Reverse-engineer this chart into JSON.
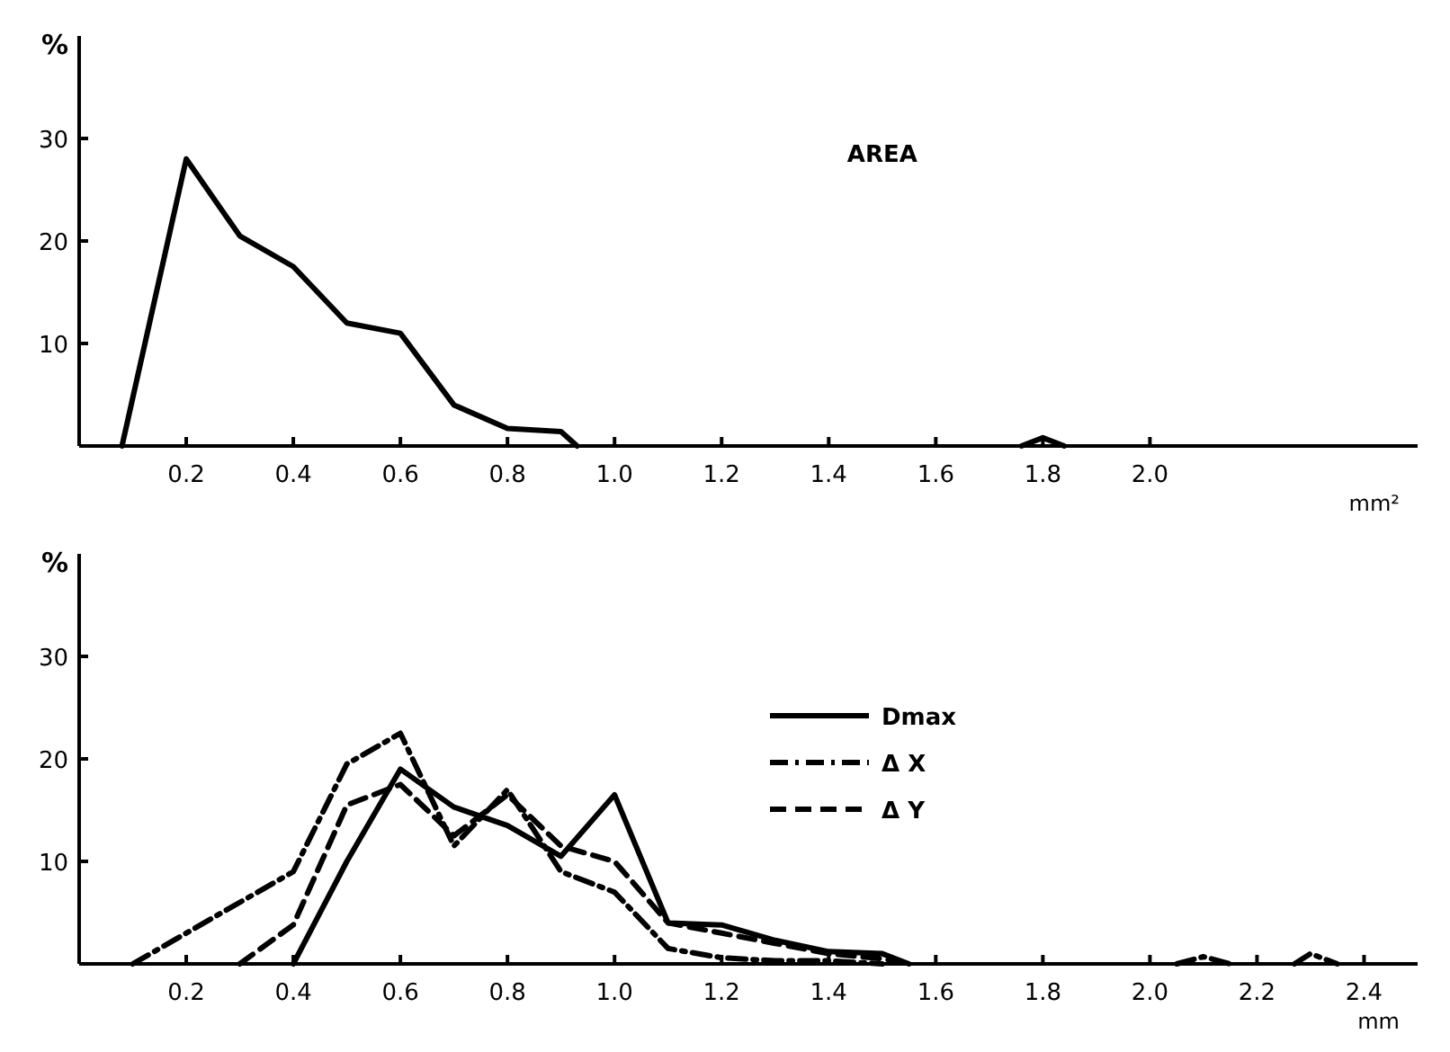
{
  "chart_data": [
    {
      "type": "line",
      "xlabel": "mm²",
      "ylabel": "%",
      "xlim": [
        0,
        2.5
      ],
      "ylim": [
        0,
        40
      ],
      "xticks": [
        0.2,
        0.4,
        {
          "value": 0.6,
          "label": "0.6"
        },
        0.8,
        {
          "value": 1.0,
          "label": "1.0"
        },
        1.2,
        1.4,
        1.6,
        1.8,
        {
          "value": 2.0,
          "label": "2.0"
        }
      ],
      "yticks": [
        10,
        20,
        30
      ],
      "grid": false,
      "legend": false,
      "annotations": [
        "AREA"
      ],
      "series": [
        {
          "color": "#000000",
          "line_style": "solid",
          "x": [
            0.08,
            0.2,
            0.3,
            0.4,
            0.5,
            0.6,
            0.7,
            0.8,
            0.9,
            0.93,
            null,
            1.76,
            1.8,
            1.84
          ],
          "values": [
            0,
            28,
            20.5,
            17.5,
            12,
            11,
            4,
            1.7,
            1.4,
            0,
            null,
            0,
            0.8,
            0
          ]
        }
      ]
    },
    {
      "type": "line",
      "xlabel": "mm",
      "ylabel": "%",
      "xlim": [
        0,
        2.5
      ],
      "ylim": [
        0,
        40
      ],
      "xticks": [
        0.2,
        0.4,
        0.6,
        0.8,
        {
          "value": 1.0,
          "label": "1.0"
        },
        1.2,
        1.4,
        1.6,
        1.8,
        {
          "value": 2.0,
          "label": "2.0"
        },
        2.2,
        2.4
      ],
      "yticks": [
        10,
        20,
        30
      ],
      "grid": false,
      "legend": "center",
      "series": [
        {
          "name": "Dmax",
          "color": "#000000",
          "line_style": "solid",
          "x": [
            0.4,
            0.5,
            0.6,
            0.7,
            0.8,
            0.9,
            1.0,
            1.1,
            1.2,
            1.3,
            1.4,
            1.5,
            1.55
          ],
          "values": [
            0,
            10,
            19,
            15.3,
            13.5,
            10.5,
            16.5,
            4,
            3.8,
            2.3,
            1.2,
            1,
            0
          ]
        },
        {
          "name": "Δ X",
          "color": "#000000",
          "line_style": "dashdot",
          "x": [
            0.1,
            0.4,
            0.5,
            0.6,
            0.7,
            0.8,
            0.9,
            1.0,
            1.1,
            1.2,
            1.3,
            1.4,
            1.5,
            null,
            2.05,
            2.1,
            2.15,
            null,
            2.27,
            2.3,
            2.35
          ],
          "values": [
            0,
            9,
            19.5,
            22.5,
            11.5,
            17,
            9,
            7,
            1.5,
            0.6,
            0.3,
            0.3,
            0,
            null,
            0,
            0.7,
            0,
            null,
            0,
            1,
            0
          ]
        },
        {
          "name": "Δ Y",
          "color": "#000000",
          "line_style": "dashed",
          "x": [
            0.3,
            0.4,
            0.5,
            0.6,
            0.7,
            0.8,
            0.9,
            1.0,
            1.1,
            1.2,
            1.3,
            1.4,
            1.5,
            1.55
          ],
          "values": [
            0,
            3.8,
            15.5,
            17.5,
            12.5,
            16.5,
            11.5,
            10,
            4,
            3,
            2,
            1,
            0.5,
            0
          ]
        }
      ]
    }
  ]
}
